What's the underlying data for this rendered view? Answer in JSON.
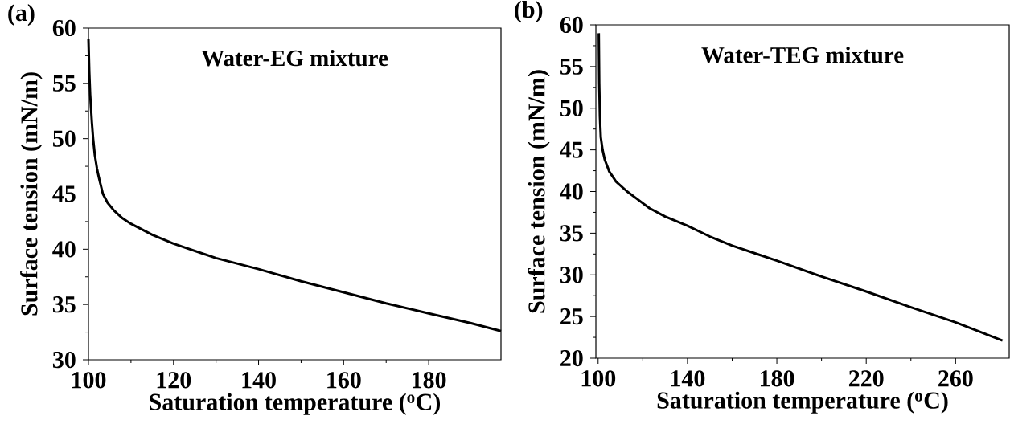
{
  "chart_data": [
    {
      "type": "line",
      "title": "(a)",
      "xlabel": "Saturation temperature ($^{o}$C)",
      "ylabel": "Surface tension (mN/m)",
      "annotations": [
        "Water-EG mixture"
      ],
      "color": "#000000",
      "xlim": [
        100,
        197
      ],
      "ylim": [
        30,
        60
      ],
      "xticks": [
        100,
        120,
        140,
        160,
        180
      ],
      "yticks": [
        30,
        35,
        40,
        45,
        50,
        55,
        60
      ],
      "x": [
        100,
        100.2,
        100.4,
        100.8,
        101.1,
        101.5,
        102,
        102.5,
        103.4,
        104.5,
        106,
        108,
        110,
        115,
        120,
        130,
        140,
        150,
        160,
        170,
        180,
        190,
        197
      ],
      "values": [
        59,
        56,
        54,
        51.5,
        50,
        48.5,
        47.3,
        46.4,
        45,
        44.2,
        43.5,
        42.8,
        42.3,
        41.3,
        40.5,
        39.2,
        38.2,
        37.1,
        36.1,
        35.1,
        34.2,
        33.3,
        32.6
      ]
    },
    {
      "type": "line",
      "title": "(b)",
      "xlabel": "Saturation temperature ($^{o}$C)",
      "ylabel": "Surface tension (mN/m)",
      "annotations": [
        "Water-TEG mixture"
      ],
      "color": "#000000",
      "xlim": [
        99,
        284
      ],
      "ylim": [
        20,
        60
      ],
      "xticks": [
        100,
        140,
        180,
        220,
        260
      ],
      "yticks": [
        20,
        25,
        30,
        35,
        40,
        45,
        50,
        55,
        60
      ],
      "x": [
        100.3,
        100.5,
        100.8,
        101.2,
        102,
        103,
        105,
        108,
        113,
        118,
        123,
        130,
        140,
        150,
        160,
        170,
        180,
        200,
        220,
        240,
        260,
        281
      ],
      "values": [
        59,
        53,
        49,
        46.5,
        45,
        43.8,
        42.4,
        41.2,
        40,
        39,
        38,
        37,
        35.9,
        34.6,
        33.5,
        32.6,
        31.7,
        29.8,
        28,
        26.1,
        24.3,
        22.1
      ]
    }
  ]
}
